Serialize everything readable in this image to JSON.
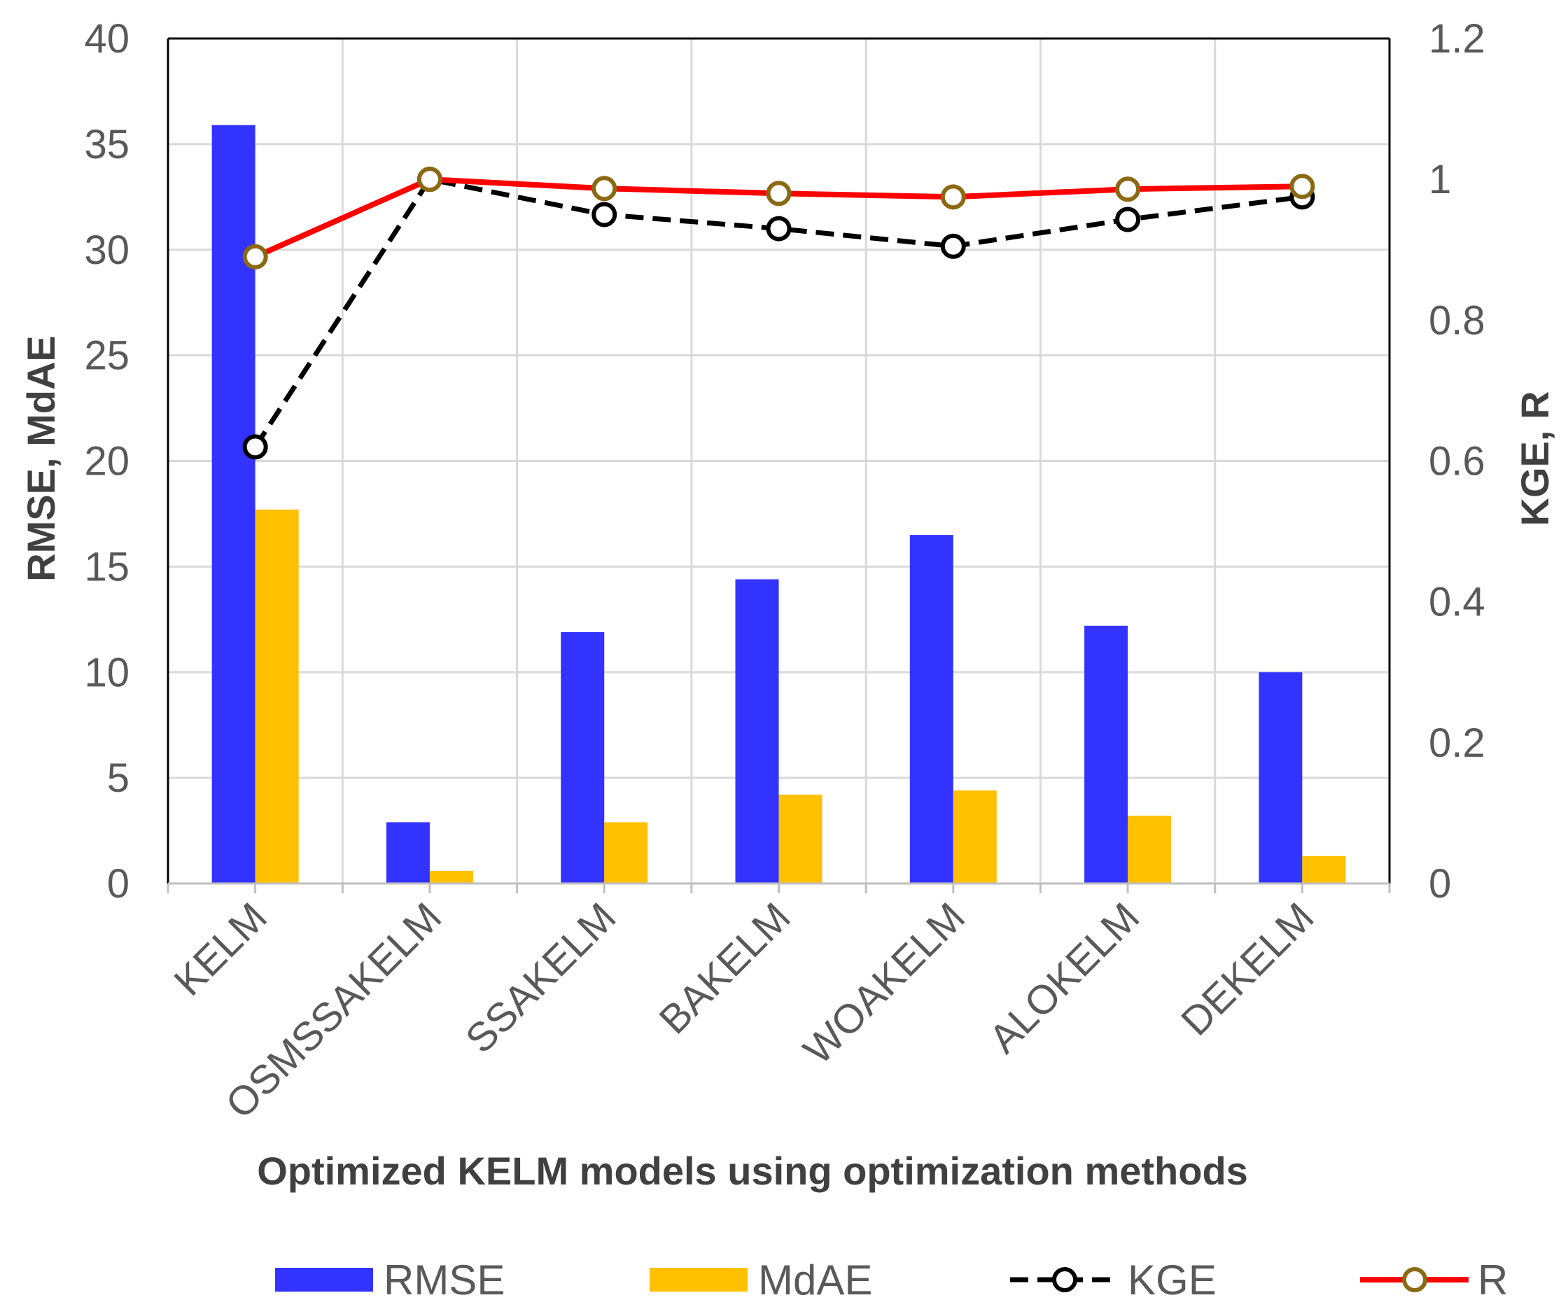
{
  "chart_data": {
    "type": "bar",
    "title": "",
    "xlabel": "Optimized KELM models using optimization methods",
    "ylabel": "RMSE, MdAE",
    "y2label": "KGE, R",
    "categories": [
      "KELM",
      "OSMSSAKELM",
      "SSAKELM",
      "BAKELM",
      "WOAKELM",
      "ALOKELM",
      "DEKELM"
    ],
    "ylim": [
      0,
      40
    ],
    "y_ticks": [
      "0",
      "5",
      "10",
      "15",
      "20",
      "25",
      "30",
      "35",
      "40"
    ],
    "y2lim": [
      0,
      1.2
    ],
    "y2_ticks": [
      "0",
      "0.2",
      "0.4",
      "0.6",
      "0.8",
      "1",
      "1.2"
    ],
    "grid": true,
    "legend_position": "bottom",
    "series": [
      {
        "name": "RMSE",
        "kind": "bar",
        "axis": "left",
        "color": "#3333FF",
        "values": [
          35.9,
          2.9,
          11.9,
          14.4,
          16.5,
          12.2,
          10.0
        ]
      },
      {
        "name": "MdAE",
        "kind": "bar",
        "axis": "left",
        "color": "#FFC000",
        "values": [
          17.7,
          0.6,
          2.9,
          4.2,
          4.4,
          3.2,
          1.3
        ]
      },
      {
        "name": "KGE",
        "kind": "line",
        "axis": "right",
        "color": "#000000",
        "line_style": "dashed",
        "marker_fill": "#FFFFFF",
        "values": [
          0.62,
          1.0,
          0.95,
          0.93,
          0.905,
          0.943,
          0.975
        ]
      },
      {
        "name": "R",
        "kind": "line",
        "axis": "right",
        "color": "#FF0000",
        "line_style": "solid",
        "marker_color": "#8B6914",
        "marker_fill": "#FFFFFF",
        "values": [
          0.89,
          1.0,
          0.987,
          0.98,
          0.975,
          0.986,
          0.99
        ]
      }
    ]
  }
}
